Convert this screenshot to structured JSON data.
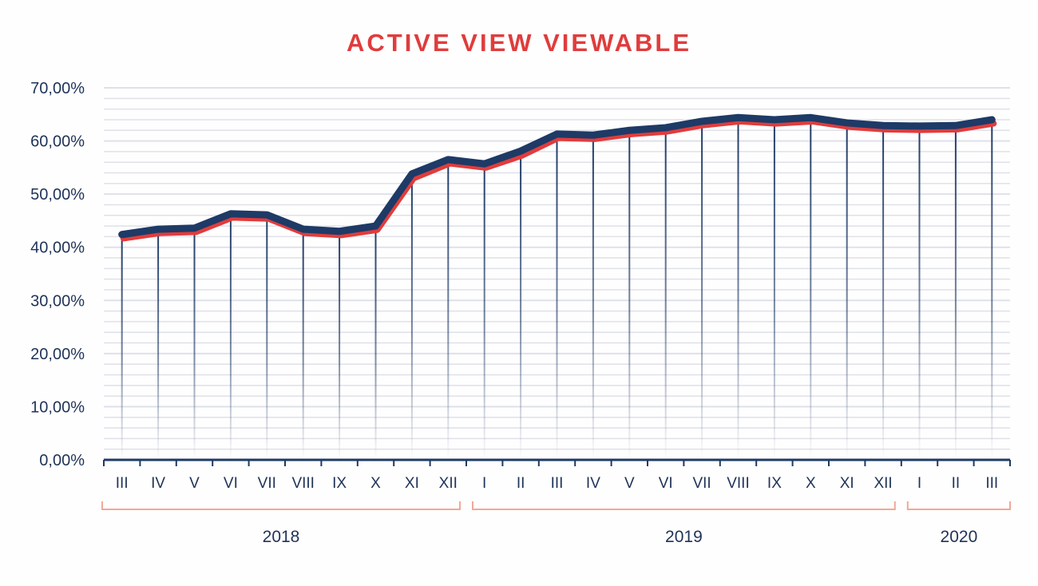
{
  "chart_data": {
    "type": "line",
    "title": "ACTIVE VIEW VIEWABLE",
    "xlabel": "",
    "ylabel": "",
    "ylim": [
      0,
      70
    ],
    "yticks": [
      "0,00%",
      "10,00%",
      "20,00%",
      "30,00%",
      "40,00%",
      "50,00%",
      "60,00%",
      "70,00%"
    ],
    "grid": true,
    "categories": [
      "III",
      "IV",
      "V",
      "VI",
      "VII",
      "VIII",
      "IX",
      "X",
      "XI",
      "XII",
      "I",
      "II",
      "III",
      "IV",
      "V",
      "VI",
      "VII",
      "VIII",
      "IX",
      "X",
      "XI",
      "XII",
      "I",
      "II",
      "III"
    ],
    "years": [
      {
        "label": "2018",
        "start": 0,
        "end": 9
      },
      {
        "label": "2019",
        "start": 10,
        "end": 21
      },
      {
        "label": "2020",
        "start": 22,
        "end": 24
      }
    ],
    "series": [
      {
        "name": "series-navy",
        "color": "#1e3a66",
        "values": [
          42.4,
          43.4,
          43.6,
          46.3,
          46.1,
          43.4,
          43.0,
          44.0,
          53.8,
          56.5,
          55.7,
          58.1,
          61.3,
          61.1,
          62.0,
          62.5,
          63.7,
          64.4,
          64.0,
          64.4,
          63.4,
          62.9,
          62.8,
          62.9,
          64.0
        ]
      },
      {
        "name": "series-red",
        "color": "#e03c3c",
        "values": [
          41.7,
          42.7,
          42.9,
          45.6,
          45.4,
          42.7,
          42.3,
          43.3,
          53.0,
          55.8,
          55.0,
          57.3,
          60.6,
          60.4,
          61.3,
          61.8,
          63.0,
          63.7,
          63.3,
          63.7,
          62.7,
          62.2,
          62.1,
          62.2,
          63.3
        ]
      }
    ]
  }
}
